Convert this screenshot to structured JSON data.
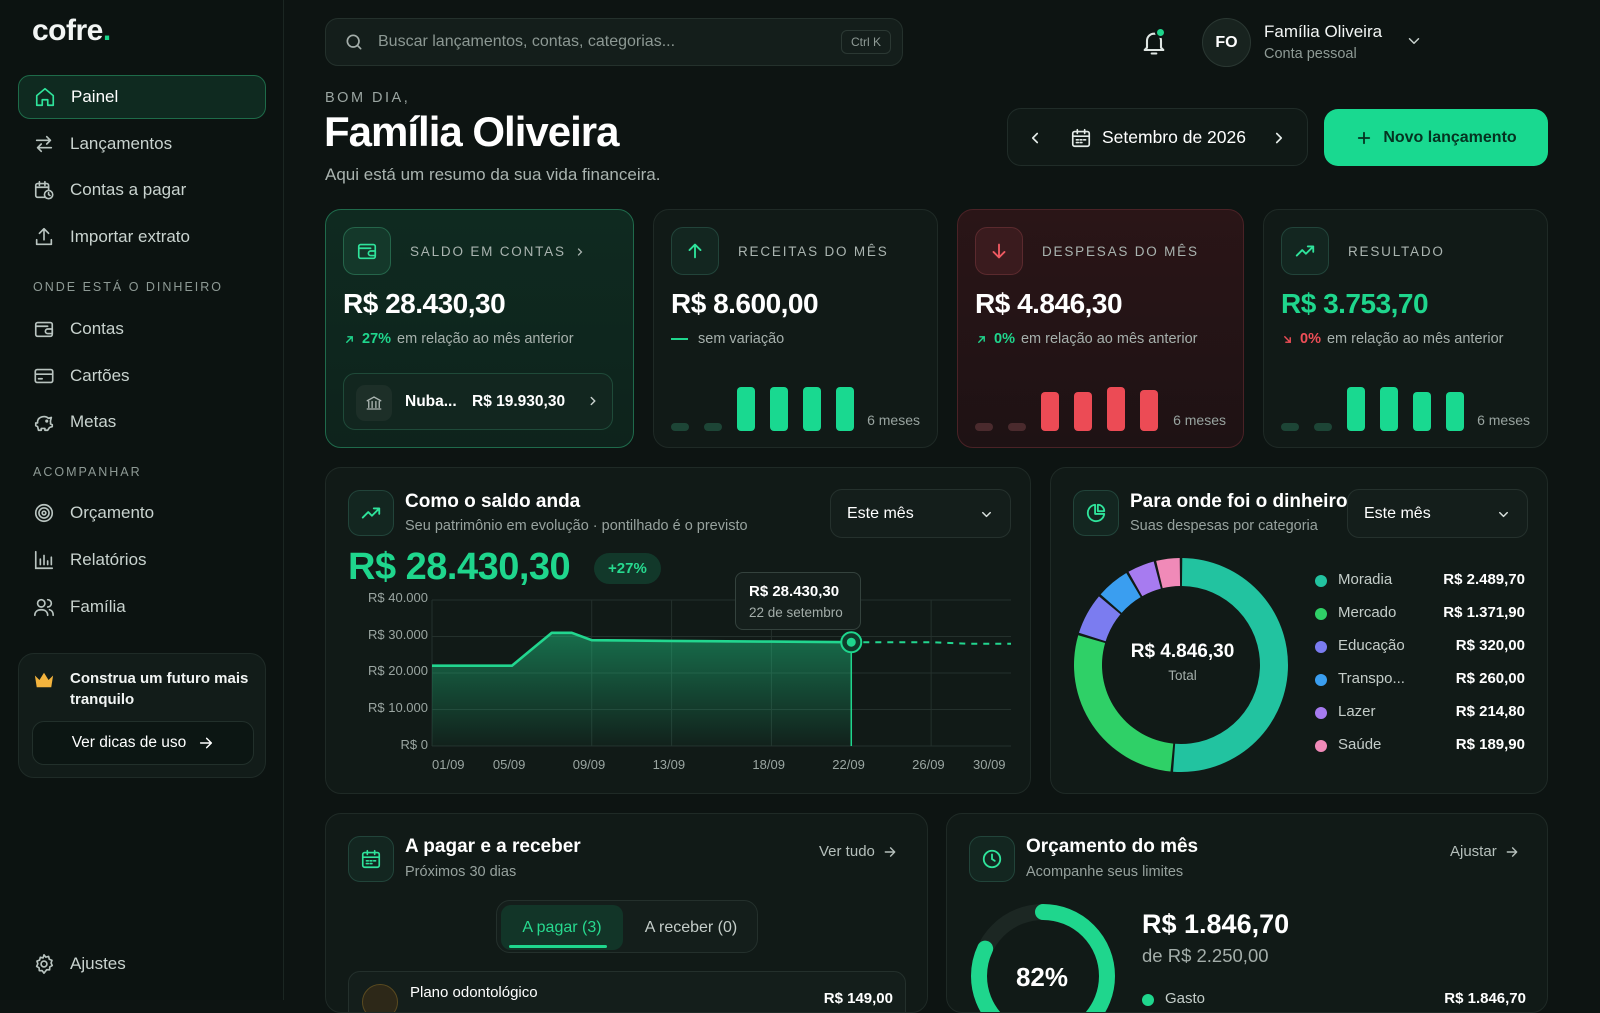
{
  "brand": {
    "name": "cofre",
    "dot": "."
  },
  "sidebar": {
    "primary": [
      {
        "label": "Painel",
        "icon": "home-icon",
        "active": true
      },
      {
        "label": "Lançamentos",
        "icon": "transfer-icon"
      },
      {
        "label": "Contas a pagar",
        "icon": "calendar-clock-icon"
      },
      {
        "label": "Importar extrato",
        "icon": "upload-icon"
      }
    ],
    "section1": "ONDE ESTÁ O DINHEIRO",
    "money": [
      {
        "label": "Contas",
        "icon": "wallet-icon"
      },
      {
        "label": "Cartões",
        "icon": "credit-card-icon"
      },
      {
        "label": "Metas",
        "icon": "piggy-bank-icon"
      }
    ],
    "section2": "ACOMPANHAR",
    "track": [
      {
        "label": "Orçamento",
        "icon": "target-icon"
      },
      {
        "label": "Relatórios",
        "icon": "bar-chart-icon"
      },
      {
        "label": "Família",
        "icon": "users-icon"
      }
    ],
    "promo": {
      "text": "Construa um futuro mais tranquilo",
      "button": "Ver dicas de uso"
    },
    "settings": "Ajustes"
  },
  "header": {
    "search_placeholder": "Buscar lançamentos, contas, categorias...",
    "shortcut": "Ctrl K",
    "user": {
      "initials": "FO",
      "name": "Família Oliveira",
      "account": "Conta pessoal"
    }
  },
  "hero": {
    "greeting": "BOM DIA,",
    "title": "Família Oliveira",
    "subtitle": "Aqui está um resumo da sua vida financeira.",
    "month": "Setembro de 2026",
    "new_button": "Novo lançamento"
  },
  "kpis": {
    "saldo": {
      "label": "SALDO EM CONTAS",
      "value": "R$ 28.430,30",
      "pct": "27%",
      "change": "em relação ao mês anterior",
      "account_name": "Nuba...",
      "account_value": "R$ 19.930,30"
    },
    "receitas": {
      "label": "RECEITAS DO MÊS",
      "value": "R$ 8.600,00",
      "change": "sem variação",
      "bars_label": "6 meses",
      "bars": [
        0.18,
        0.18,
        0.95,
        0.95,
        0.95,
        0.95
      ]
    },
    "despesas": {
      "label": "DESPESAS DO MÊS",
      "value": "R$ 4.846,30",
      "pct": "0%",
      "change": "em relação ao mês anterior",
      "bars_label": "6 meses",
      "bars": [
        0.18,
        0.18,
        0.85,
        0.85,
        0.95,
        0.9
      ]
    },
    "resultado": {
      "label": "RESULTADO",
      "value": "R$ 3.753,70",
      "pct": "0%",
      "change": "em relação ao mês anterior",
      "bars_label": "6 meses",
      "bars": [
        0.18,
        0.18,
        0.95,
        0.95,
        0.85,
        0.85
      ]
    }
  },
  "balance_chart": {
    "title": "Como o saldo anda",
    "subtitle": "Seu patrimônio em evolução · pontilhado é o previsto",
    "period": "Este mês",
    "value": "R$ 28.430,30",
    "badge": "+27%",
    "tooltip_value": "R$ 28.430,30",
    "tooltip_date": "22 de setembro"
  },
  "chart_data": {
    "type": "area",
    "x_tick_labels": [
      "01/09",
      "05/09",
      "09/09",
      "13/09",
      "18/09",
      "22/09",
      "26/09",
      "30/09"
    ],
    "y_tick_labels": [
      "R$ 40.000",
      "R$ 30.000",
      "R$ 20.000",
      "R$ 10.000",
      "R$ 0"
    ],
    "ylim": [
      0,
      40000
    ],
    "xlim": [
      1,
      30
    ],
    "series": [
      {
        "style": "solid",
        "x": [
          1,
          5,
          6,
          7,
          8,
          9,
          13,
          18,
          22
        ],
        "y": [
          22000,
          22000,
          26500,
          31000,
          31000,
          29000,
          28800,
          28600,
          28430
        ]
      },
      {
        "style": "dashed",
        "x": [
          22,
          26,
          28,
          30
        ],
        "y": [
          28430,
          28430,
          28000,
          28000
        ]
      }
    ],
    "colors": {
      "line": "#22d68f",
      "grid": "#24302c"
    }
  },
  "spending": {
    "title": "Para onde foi o dinheiro",
    "subtitle": "Suas despesas por categoria",
    "period": "Este mês",
    "total": "R$ 4.846,30",
    "total_label": "Total",
    "categories": [
      {
        "name": "Moradia",
        "value": "R$ 2.489,70",
        "amount": 2489.7,
        "color": "#22c3a0"
      },
      {
        "name": "Mercado",
        "value": "R$ 1.371,90",
        "amount": 1371.9,
        "color": "#2fd067"
      },
      {
        "name": "Educação",
        "value": "R$ 320,00",
        "amount": 320.0,
        "color": "#7b7cf0"
      },
      {
        "name": "Transpo...",
        "value": "R$ 260,00",
        "amount": 260.0,
        "color": "#3a9ef0"
      },
      {
        "name": "Lazer",
        "value": "R$ 214,80",
        "amount": 214.8,
        "color": "#a77bf0"
      },
      {
        "name": "Saúde",
        "value": "R$ 189,90",
        "amount": 189.9,
        "color": "#f08ab8"
      }
    ]
  },
  "bills": {
    "title": "A pagar e a receber",
    "subtitle": "Próximos 30 dias",
    "link": "Ver tudo",
    "tab_pay": "A pagar (3)",
    "tab_receive": "A receber (0)",
    "first_item": {
      "name": "Plano odontológico",
      "value": "R$ 149,00"
    }
  },
  "budget": {
    "title": "Orçamento do mês",
    "subtitle": "Acompanhe seus limites",
    "link": "Ajustar",
    "percent": "82%",
    "progress": 0.82,
    "spent": "R$ 1.846,70",
    "limit": "de R$ 2.250,00",
    "row_label": "Gasto",
    "row_value": "R$ 1.846,70"
  }
}
